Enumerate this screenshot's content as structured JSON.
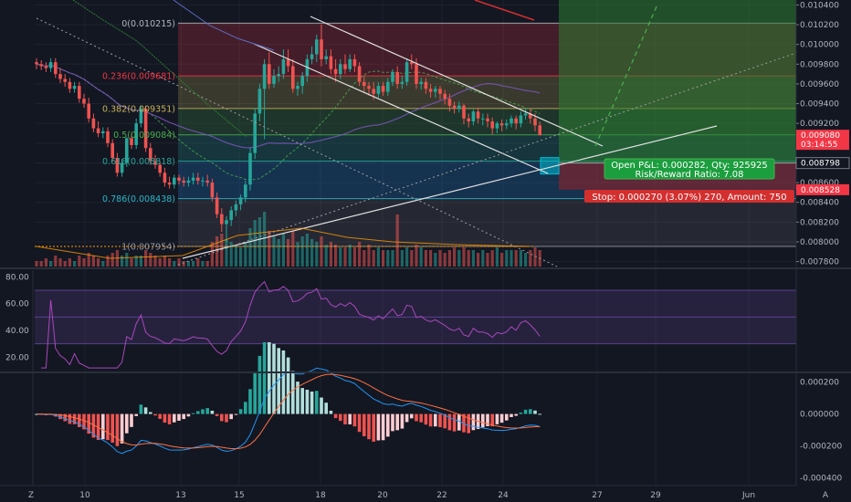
{
  "chart_data": {
    "type": "candlestick",
    "price_axis": {
      "range": [
        0.00775,
        0.01045
      ],
      "ticks": [
        "0.010400",
        "0.010200",
        "0.010000",
        "0.009800",
        "0.009600",
        "0.009400",
        "0.009200",
        "0.009000",
        "0.008800",
        "0.008600",
        "0.008400",
        "0.008200",
        "0.008000",
        "0.007800"
      ],
      "tags": [
        {
          "value": 0.00908,
          "label": "0.009080",
          "sublabel": "03:14:55",
          "color": "#f23645"
        },
        {
          "value": 0.008798,
          "label": "0.008798",
          "color": "#131722"
        },
        {
          "value": 0.008528,
          "label": "0.008528",
          "color": "#f23645"
        }
      ]
    },
    "time_axis": {
      "labels": [
        "10",
        "13",
        "15",
        "18",
        "20",
        "22",
        "24",
        "27",
        "29",
        "Jun"
      ]
    },
    "fib_levels": [
      {
        "ratio": "0",
        "value": 0.010215,
        "label": "0(0.010215)",
        "color": "#b2b5be"
      },
      {
        "ratio": "0.236",
        "value": 0.009681,
        "label": "0.236(0.009681)",
        "color": "#f23645"
      },
      {
        "ratio": "0.382",
        "value": 0.009351,
        "label": "0.382(0.009351)",
        "color": "#c9b458"
      },
      {
        "ratio": "0.5",
        "value": 0.009084,
        "label": "0.5(0.009084)",
        "color": "#4caf50"
      },
      {
        "ratio": "0.618",
        "value": 0.008818,
        "label": "0.618(0.008818)",
        "color": "#26a69a"
      },
      {
        "ratio": "0.786",
        "value": 0.008438,
        "label": "0.786(0.008438)",
        "color": "#2ab7ca"
      },
      {
        "ratio": "1",
        "value": 0.007954,
        "label": "1(0.007954)",
        "color": "#9598a1"
      }
    ],
    "position": {
      "profit_label": "Open P&L: 0.000282, Qty: 925925",
      "rr_label": "Risk/Reward Ratio: 7.08",
      "stop_label": "Stop: 0.000270 (3.07%) 270, Amount: 750",
      "entry": 0.008798,
      "stop": 0.008528,
      "target": 0.0107
    },
    "candles": {
      "open": [
        0.00982,
        0.0098,
        0.00978,
        0.00976,
        0.00982,
        0.0097,
        0.00965,
        0.00962,
        0.00955,
        0.00958,
        0.00945,
        0.0094,
        0.00925,
        0.00915,
        0.0091,
        0.00912,
        0.009,
        0.00885,
        0.0087,
        0.0088,
        0.00905,
        0.00898,
        0.0092,
        0.00935,
        0.00895,
        0.00882,
        0.00878,
        0.0087,
        0.0086,
        0.00858,
        0.00865,
        0.00862,
        0.0086,
        0.00862,
        0.00865,
        0.00862,
        0.00862,
        0.0086,
        0.00845,
        0.00828,
        0.00818,
        0.00822,
        0.00832,
        0.00838,
        0.00845,
        0.00858,
        0.0089,
        0.0093,
        0.00955,
        0.0098,
        0.0096,
        0.00968,
        0.0097,
        0.00985,
        0.00978,
        0.00955,
        0.00958,
        0.00968,
        0.00985,
        0.0099,
        0.01005,
        0.00985,
        0.00988,
        0.00975,
        0.0097,
        0.0098,
        0.00975,
        0.00985,
        0.00978,
        0.00962,
        0.00958,
        0.00955,
        0.0095,
        0.00958,
        0.00952,
        0.00962,
        0.00972,
        0.0096,
        0.00962,
        0.00982,
        0.0098,
        0.0096,
        0.00962,
        0.00955,
        0.00952,
        0.00955,
        0.0095,
        0.00945,
        0.00938,
        0.00935,
        0.00938,
        0.00925,
        0.00922,
        0.00932,
        0.00925,
        0.00925,
        0.00922,
        0.00915,
        0.0092,
        0.00918,
        0.0092,
        0.00925,
        0.0092,
        0.00928,
        0.0093,
        0.00925,
        0.00918
      ],
      "high": [
        0.00986,
        0.00984,
        0.00982,
        0.00986,
        0.00986,
        0.00976,
        0.0097,
        0.00966,
        0.00962,
        0.00962,
        0.0095,
        0.00946,
        0.0093,
        0.00922,
        0.00916,
        0.00916,
        0.00904,
        0.0089,
        0.00884,
        0.00906,
        0.0091,
        0.00925,
        0.00938,
        0.00938,
        0.009,
        0.00888,
        0.00882,
        0.00875,
        0.00866,
        0.00868,
        0.00868,
        0.00866,
        0.00866,
        0.0087,
        0.0087,
        0.00866,
        0.00868,
        0.00864,
        0.0085,
        0.00834,
        0.00826,
        0.00836,
        0.00842,
        0.00848,
        0.00862,
        0.00895,
        0.00935,
        0.0096,
        0.00985,
        0.00992,
        0.00975,
        0.00978,
        0.00995,
        0.00995,
        0.00985,
        0.00962,
        0.00972,
        0.0099,
        0.00998,
        0.0101,
        0.0102,
        0.00995,
        0.00995,
        0.00985,
        0.00985,
        0.0099,
        0.0099,
        0.0099,
        0.00982,
        0.00968,
        0.00962,
        0.00962,
        0.00962,
        0.00962,
        0.00966,
        0.00975,
        0.00978,
        0.00968,
        0.00986,
        0.0099,
        0.00986,
        0.00966,
        0.00966,
        0.0096,
        0.00958,
        0.00958,
        0.00954,
        0.0095,
        0.00942,
        0.00942,
        0.0094,
        0.0093,
        0.00934,
        0.00936,
        0.0093,
        0.0093,
        0.00926,
        0.00922,
        0.00924,
        0.00924,
        0.00928,
        0.00928,
        0.00932,
        0.00935,
        0.00935,
        0.0093,
        0.00922
      ],
      "low": [
        0.00975,
        0.00974,
        0.00972,
        0.00972,
        0.00966,
        0.00961,
        0.00957,
        0.00951,
        0.00951,
        0.00941,
        0.00936,
        0.00921,
        0.00911,
        0.00906,
        0.00905,
        0.00896,
        0.00881,
        0.00866,
        0.00866,
        0.00876,
        0.00894,
        0.00894,
        0.00916,
        0.00891,
        0.00878,
        0.00874,
        0.00866,
        0.00856,
        0.00854,
        0.00854,
        0.00858,
        0.00856,
        0.00856,
        0.00858,
        0.00858,
        0.00856,
        0.00856,
        0.00841,
        0.00824,
        0.0081,
        0.008,
        0.00816,
        0.00826,
        0.00832,
        0.0084,
        0.00852,
        0.00884,
        0.00922,
        0.00904,
        0.00955,
        0.00956,
        0.00962,
        0.00965,
        0.00972,
        0.00951,
        0.00948,
        0.0095,
        0.00962,
        0.0098,
        0.00982,
        0.00978,
        0.0098,
        0.0097,
        0.00962,
        0.00965,
        0.0097,
        0.00972,
        0.00972,
        0.00958,
        0.00952,
        0.00948,
        0.00944,
        0.00946,
        0.00948,
        0.00948,
        0.00958,
        0.00955,
        0.00955,
        0.00958,
        0.00975,
        0.00955,
        0.00954,
        0.0095,
        0.00946,
        0.00946,
        0.00944,
        0.00939,
        0.00932,
        0.0093,
        0.00931,
        0.00919,
        0.00916,
        0.00918,
        0.0092,
        0.00918,
        0.00916,
        0.00909,
        0.0091,
        0.00912,
        0.00914,
        0.00916,
        0.00914,
        0.00916,
        0.00924,
        0.0092,
        0.00912,
        0.00908
      ],
      "close": [
        0.0098,
        0.00978,
        0.00976,
        0.00982,
        0.0097,
        0.00965,
        0.00962,
        0.00955,
        0.00958,
        0.00945,
        0.0094,
        0.00925,
        0.00915,
        0.0091,
        0.00912,
        0.009,
        0.00885,
        0.0087,
        0.0088,
        0.00905,
        0.00898,
        0.0092,
        0.00935,
        0.00895,
        0.00882,
        0.00878,
        0.0087,
        0.0086,
        0.00858,
        0.00865,
        0.00862,
        0.0086,
        0.00862,
        0.00865,
        0.00862,
        0.00862,
        0.0086,
        0.00845,
        0.00828,
        0.00818,
        0.00822,
        0.00832,
        0.00838,
        0.00845,
        0.00858,
        0.0089,
        0.0093,
        0.00955,
        0.0098,
        0.0096,
        0.00968,
        0.0097,
        0.00985,
        0.00978,
        0.00955,
        0.00958,
        0.00968,
        0.00985,
        0.0099,
        0.01005,
        0.00985,
        0.00988,
        0.00975,
        0.0097,
        0.0098,
        0.00975,
        0.00985,
        0.00978,
        0.00962,
        0.00958,
        0.00955,
        0.0095,
        0.00958,
        0.00952,
        0.00962,
        0.00972,
        0.0096,
        0.00962,
        0.00982,
        0.0098,
        0.0096,
        0.00962,
        0.00955,
        0.00952,
        0.00955,
        0.0095,
        0.00945,
        0.00938,
        0.00935,
        0.00938,
        0.00925,
        0.00922,
        0.00932,
        0.00925,
        0.00925,
        0.00922,
        0.00915,
        0.0092,
        0.00918,
        0.0092,
        0.00925,
        0.0092,
        0.00928,
        0.0093,
        0.00925,
        0.00918,
        0.00908
      ],
      "volume_relative": [
        0.1,
        0.1,
        0.15,
        0.1,
        0.2,
        0.15,
        0.1,
        0.15,
        0.1,
        0.2,
        0.15,
        0.25,
        0.2,
        0.15,
        0.1,
        0.2,
        0.25,
        0.3,
        0.2,
        0.25,
        0.15,
        0.2,
        0.2,
        0.3,
        0.25,
        0.2,
        0.15,
        0.2,
        0.15,
        0.1,
        0.15,
        0.1,
        0.1,
        0.1,
        0.15,
        0.1,
        0.1,
        0.45,
        0.55,
        0.6,
        0.5,
        0.45,
        0.4,
        0.35,
        0.45,
        0.7,
        0.85,
        0.9,
        1.0,
        0.65,
        0.55,
        0.5,
        0.6,
        0.5,
        0.65,
        0.45,
        0.55,
        0.6,
        0.5,
        0.45,
        0.55,
        0.4,
        0.45,
        0.4,
        0.35,
        0.35,
        0.4,
        0.35,
        0.45,
        0.3,
        0.4,
        0.3,
        0.35,
        0.3,
        0.3,
        0.3,
        0.95,
        0.3,
        0.35,
        0.3,
        0.4,
        0.35,
        0.3,
        0.3,
        0.25,
        0.3,
        0.25,
        0.3,
        0.35,
        0.3,
        0.35,
        0.3,
        0.3,
        0.25,
        0.3,
        0.25,
        0.3,
        0.35,
        0.25,
        0.3,
        0.3,
        0.3,
        0.3,
        0.25,
        0.3,
        0.35,
        0.3
      ]
    },
    "rsi": {
      "range": [
        10,
        85
      ],
      "ticks": [
        "80.00",
        "60.00",
        "40.00",
        "20.00"
      ],
      "bands": [
        70,
        50,
        30
      ]
    },
    "macd": {
      "range": [
        -0.00045,
        0.00025
      ],
      "ticks": [
        "0.000200",
        "0.000000",
        "-0.000200",
        "-0.000400"
      ]
    },
    "colors": {
      "background": "#131722",
      "up": "#26a69a",
      "down": "#ef5350",
      "axis_text": "#b2b5be",
      "profit_zone": "#1b5e20",
      "loss_zone": "#b71c1c",
      "rsi_line": "#9c27b0"
    }
  }
}
